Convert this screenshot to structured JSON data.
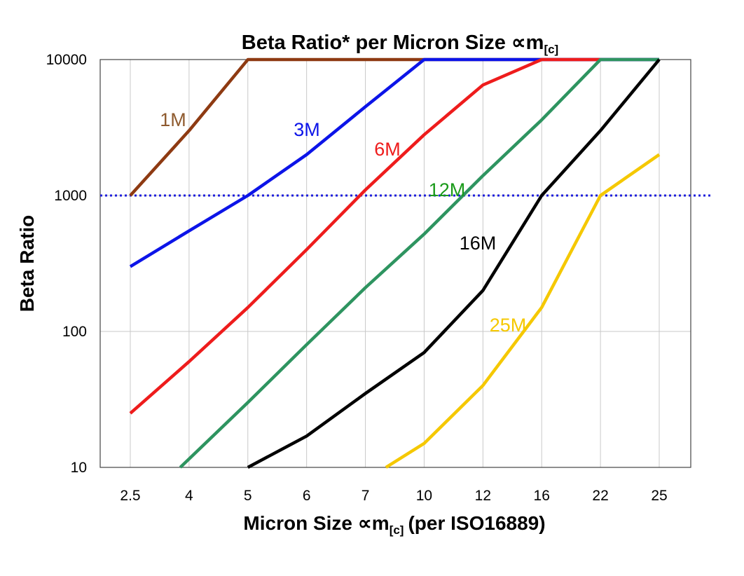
{
  "chart_data": {
    "type": "line",
    "title": "Beta Ratio* per Micron Size",
    "title_unit_symbol": "∝m",
    "title_unit_subscript": "[c]",
    "xlabel": "Micron Size",
    "xlabel_unit_symbol": "∝m",
    "xlabel_unit_subscript": "[c]",
    "xlabel_suffix": "(per ISO16889)",
    "ylabel": "Beta Ratio",
    "y_scale": "log",
    "ylim": [
      10,
      10000
    ],
    "y_ticks": [
      "10",
      "100",
      "1000",
      "10000"
    ],
    "categories": [
      "2.5",
      "4",
      "5",
      "6",
      "7",
      "10",
      "12",
      "16",
      "22",
      "25"
    ],
    "grid": true,
    "reference_line": {
      "y": 1000,
      "color": "#1f1fdc",
      "style": "dotted"
    },
    "series": [
      {
        "name": "1M",
        "color": "#8e3a12",
        "label_color": "#8e5a2e",
        "x": [
          0,
          1,
          2,
          3,
          4,
          5,
          6,
          7,
          8,
          9
        ],
        "values": [
          1000,
          3000,
          10000,
          10000,
          10000,
          10000,
          10000,
          10000,
          10000,
          10000
        ]
      },
      {
        "name": "3M",
        "color": "#0c14e8",
        "label_color": "#0c14e8",
        "x": [
          0,
          1,
          2,
          3,
          4,
          5,
          6,
          7,
          8,
          9
        ],
        "values": [
          300,
          550,
          1000,
          2000,
          4500,
          10000,
          10000,
          10000,
          10000,
          10000
        ]
      },
      {
        "name": "6M",
        "color": "#ee1c1c",
        "label_color": "#ee1c1c",
        "x": [
          0,
          1,
          2,
          3,
          4,
          5,
          6,
          7,
          8
        ],
        "values": [
          25,
          60,
          150,
          400,
          1100,
          2800,
          6500,
          10000,
          10000
        ]
      },
      {
        "name": "12M",
        "color": "#2e9460",
        "label_color": "#1a9a1a",
        "x": [
          0.85,
          2,
          3,
          4,
          5,
          6,
          7,
          8,
          9
        ],
        "values": [
          10,
          30,
          80,
          210,
          520,
          1400,
          3600,
          10000,
          10000
        ]
      },
      {
        "name": "16M",
        "color": "#000000",
        "label_color": "#000000",
        "x": [
          2,
          3,
          4,
          5,
          6,
          7,
          8,
          9
        ],
        "values": [
          10,
          17,
          35,
          70,
          200,
          1000,
          3000,
          10000
        ]
      },
      {
        "name": "25M",
        "color": "#f5c800",
        "label_color": "#f5c800",
        "x": [
          4.35,
          5,
          6,
          7,
          8,
          9
        ],
        "values": [
          10,
          15,
          40,
          150,
          1000,
          2000
        ]
      }
    ]
  }
}
